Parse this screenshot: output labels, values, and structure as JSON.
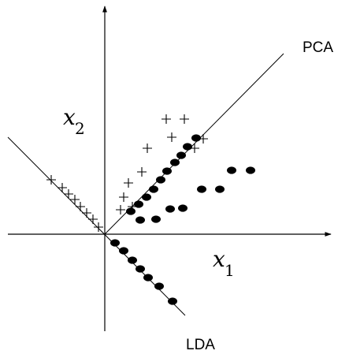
{
  "labels": {
    "pca": "PCA",
    "lda": "LDA",
    "x_axis": {
      "var": "x",
      "sub": "1"
    },
    "y_axis": {
      "var": "x",
      "sub": "2"
    }
  },
  "colors": {
    "ink": "#000000",
    "background": "#ffffff"
  }
}
